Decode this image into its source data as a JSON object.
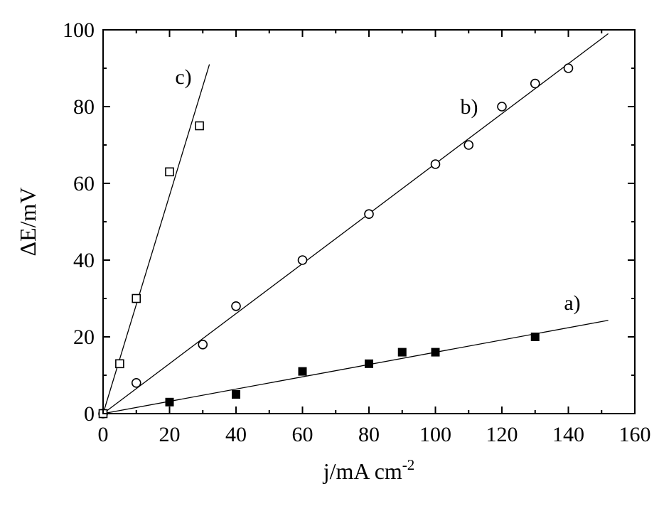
{
  "chart_data": {
    "type": "scatter",
    "xlabel": "j/mA cm",
    "xlabel_superscript": "-2",
    "ylabel": "ΔE/mV",
    "xlim": [
      0,
      160
    ],
    "ylim": [
      0,
      100
    ],
    "xticks": [
      0,
      20,
      40,
      60,
      80,
      100,
      120,
      140,
      160
    ],
    "yticks": [
      0,
      20,
      40,
      60,
      80,
      100
    ],
    "grid": false,
    "series": [
      {
        "label": "a)",
        "marker": "filled-square",
        "x": [
          0,
          20,
          40,
          60,
          80,
          90,
          100,
          130
        ],
        "y": [
          0,
          3,
          5,
          11,
          13,
          16,
          16,
          20
        ],
        "fit_line": {
          "x": [
            0,
            152
          ],
          "y": [
            0,
            24.3
          ]
        }
      },
      {
        "label": "b)",
        "marker": "open-circle",
        "x": [
          0,
          10,
          30,
          40,
          60,
          80,
          100,
          110,
          120,
          130,
          140
        ],
        "y": [
          0,
          8,
          18,
          28,
          40,
          52,
          65,
          70,
          80,
          86,
          90
        ],
        "fit_line": {
          "x": [
            0,
            152
          ],
          "y": [
            0,
            99
          ]
        }
      },
      {
        "label": "c)",
        "marker": "open-square",
        "x": [
          0,
          5,
          10,
          20,
          29
        ],
        "y": [
          0,
          13,
          30,
          63,
          75
        ],
        "fit_line": {
          "x": [
            0,
            32
          ],
          "y": [
            0,
            91
          ]
        }
      }
    ]
  }
}
